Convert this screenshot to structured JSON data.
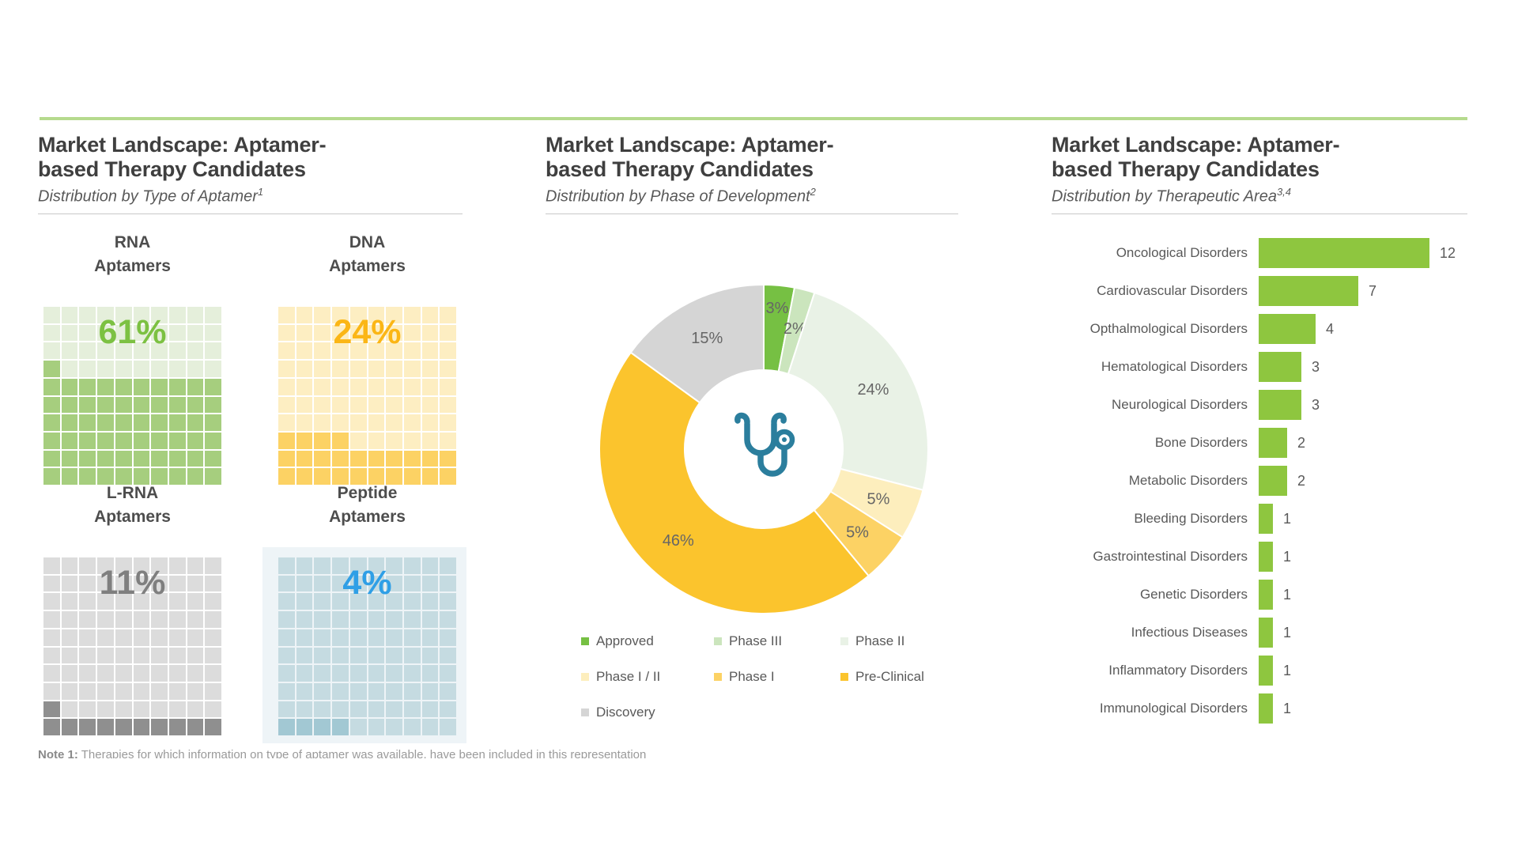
{
  "accent_colors": {
    "top_rule_green": "#b5da8e",
    "bar_green": "#8ec63f",
    "stethoscope_teal": "#2b7e9d"
  },
  "panels": {
    "left": {
      "title_line1": "Market Landscape: Aptamer-",
      "title_line2": "based Therapy Candidates",
      "subtitle": "Distribution by Type of Aptamer",
      "subtitle_sup": "1"
    },
    "middle": {
      "title_line1": "Market Landscape: Aptamer-",
      "title_line2": "based Therapy Candidates",
      "subtitle": "Distribution by Phase of Development",
      "subtitle_sup": "2"
    },
    "right": {
      "title_line1": "Market Landscape: Aptamer-",
      "title_line2": "based Therapy Candidates",
      "subtitle": "Distribution by Therapeutic Area",
      "subtitle_sup": "3,4"
    }
  },
  "chart_data": [
    {
      "type": "heatmap",
      "subtype": "waffle-10x10",
      "title": "Distribution by Type of Aptamer",
      "units_per_grid": 100,
      "items": [
        {
          "label_line1": "RNA",
          "label_line2": "Aptamers",
          "value": 61,
          "percent_label": "61%",
          "fill_color": "#a6ce7e",
          "empty_color": "#e5efdb",
          "text_color": "#7cc142"
        },
        {
          "label_line1": "DNA",
          "label_line2": "Aptamers",
          "value": 24,
          "percent_label": "24%",
          "fill_color": "#fcd264",
          "empty_color": "#fdeec2",
          "text_color": "#fbb616"
        },
        {
          "label_line1": "L-RNA",
          "label_line2": "Aptamers",
          "value": 11,
          "percent_label": "11%",
          "fill_color": "#8f8f8f",
          "empty_color": "#dcdcdc",
          "text_color": "#7f7f7f"
        },
        {
          "label_line1": "Peptide",
          "label_line2": "Aptamers",
          "value": 4,
          "percent_label": "4%",
          "fill_color": "#a2c8d3",
          "empty_color": "#c5dbe1",
          "text_color": "#2f9fe6"
        }
      ]
    },
    {
      "type": "pie",
      "subtype": "donut",
      "title": "Distribution by Phase of Development",
      "start_angle_deg": 0,
      "clockwise": true,
      "label_format": "percent",
      "legend_position": "bottom",
      "center_icon": "stethoscope-icon",
      "slices": [
        {
          "label": "Approved",
          "value": 3,
          "color": "#76c043",
          "label_r": 180
        },
        {
          "label": "Phase III",
          "value": 2,
          "color": "#cbe5bd"
        },
        {
          "label": "Phase II",
          "value": 24,
          "color": "#e9f2e6"
        },
        {
          "label": "Phase I / II",
          "value": 5,
          "color": "#fdeebd"
        },
        {
          "label": "Phase I",
          "value": 5,
          "color": "#fcd264"
        },
        {
          "label": "Pre-Clinical",
          "value": 46,
          "color": "#fbc42d"
        },
        {
          "label": "Discovery",
          "value": 15,
          "color": "#d5d5d5"
        }
      ]
    },
    {
      "type": "bar",
      "orientation": "horizontal",
      "title": "Distribution by Therapeutic Area",
      "bar_color": "#8ec63f",
      "xlim": [
        0,
        12
      ],
      "grid": false,
      "categories": [
        "Oncological Disorders",
        "Cardiovascular Disorders",
        "Opthalmological Disorders",
        "Hematological Disorders",
        "Neurological Disorders",
        "Bone Disorders",
        "Metabolic Disorders",
        "Bleeding Disorders",
        "Gastrointestinal Disorders",
        "Genetic Disorders",
        "Infectious Diseases",
        "Inflammatory Disorders",
        "Immunological Disorders"
      ],
      "values": [
        12,
        7,
        4,
        3,
        3,
        2,
        2,
        1,
        1,
        1,
        1,
        1,
        1
      ]
    }
  ],
  "note": {
    "prefix": "Note 1:",
    "text": "Therapies for which information on type of aptamer was available, have been included in this representation"
  }
}
